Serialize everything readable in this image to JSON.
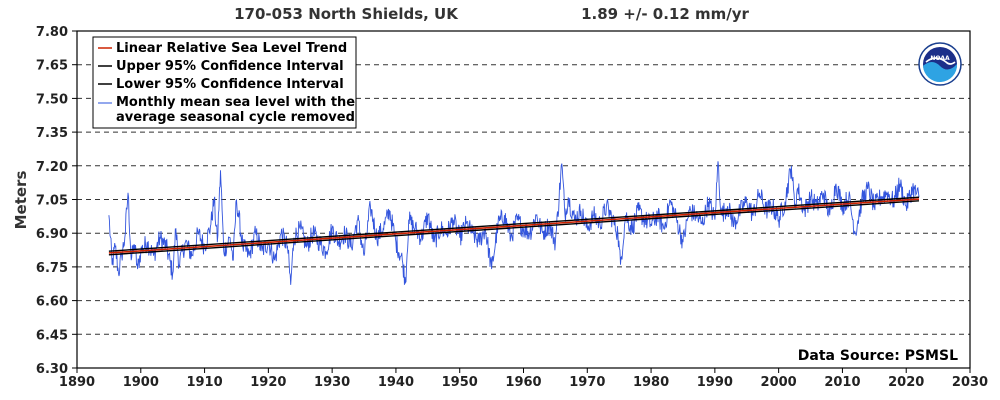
{
  "header": {
    "station": "170-053 North Shields, UK",
    "trend": "1.89 +/-  0.12 mm/yr"
  },
  "source_label": "Data Source: PSMSL",
  "logo": {
    "icon": "noaa-logo-icon",
    "text": "NOAA"
  },
  "colors": {
    "trend": "#cc2200",
    "ci": "#000000",
    "series": "#3355dd",
    "grid": "#333333"
  },
  "chart_data": {
    "type": "line",
    "title": "170-053 North Shields, UK",
    "subtitle": "1.89 +/-  0.12 mm/yr",
    "ylabel": "Meters",
    "xlabel": "",
    "xlim": [
      1890,
      2030
    ],
    "ylim": [
      6.3,
      7.8
    ],
    "x_ticks": [
      "1890",
      "1900",
      "1910",
      "1920",
      "1930",
      "1940",
      "1950",
      "1960",
      "1970",
      "1980",
      "1990",
      "2000",
      "2010",
      "2020",
      "2030"
    ],
    "y_ticks": [
      "7.80",
      "7.65",
      "7.50",
      "7.35",
      "7.20",
      "7.05",
      "6.90",
      "6.75",
      "6.60",
      "6.45",
      "6.30"
    ],
    "grid": "horizontal-dashed",
    "legend_position": "top-left",
    "legend": [
      "Linear Relative Sea Level Trend",
      "Upper 95% Confidence Interval",
      "Lower 95% Confidence Interval",
      "Monthly mean sea level with the",
      "average seasonal cycle removed"
    ],
    "trend_line": {
      "x": [
        1895,
        2022
      ],
      "y": [
        6.812,
        7.052
      ]
    },
    "upper_ci": {
      "x": [
        1895,
        2022
      ],
      "y": [
        6.82,
        7.06
      ]
    },
    "lower_ci": {
      "x": [
        1895,
        2022
      ],
      "y": [
        6.804,
        7.044
      ]
    },
    "monthly_series": {
      "name": "Monthly mean sea level with the average seasonal cycle removed",
      "x": [
        1895.0,
        1895.5,
        1896.0,
        1896.5,
        1897.0,
        1897.5,
        1898.0,
        1898.5,
        1899.0,
        1899.5,
        1900.0,
        1901.0,
        1902.0,
        1903.0,
        1904.0,
        1905.0,
        1905.5,
        1906.0,
        1907.0,
        1908.0,
        1909.0,
        1910.0,
        1911.0,
        1911.5,
        1912.0,
        1912.5,
        1913.0,
        1914.0,
        1914.5,
        1915.0,
        1916.0,
        1917.0,
        1918.0,
        1919.0,
        1920.0,
        1921.0,
        1922.0,
        1923.0,
        1923.5,
        1924.0,
        1925.0,
        1926.0,
        1927.0,
        1928.0,
        1929.0,
        1930.0,
        1931.0,
        1932.0,
        1933.0,
        1934.0,
        1935.0,
        1936.0,
        1937.0,
        1938.0,
        1939.0,
        1940.0,
        1941.0,
        1941.5,
        1942.0,
        1943.0,
        1944.0,
        1945.0,
        1946.0,
        1947.0,
        1948.0,
        1949.0,
        1950.0,
        1951.0,
        1952.0,
        1953.0,
        1954.0,
        1955.0,
        1956.0,
        1957.0,
        1958.0,
        1959.0,
        1960.0,
        1961.0,
        1962.0,
        1963.0,
        1964.0,
        1965.0,
        1966.0,
        1966.5,
        1967.0,
        1968.0,
        1969.0,
        1970.0,
        1971.0,
        1972.0,
        1973.0,
        1974.0,
        1974.8,
        1975.2,
        1976.0,
        1977.0,
        1978.0,
        1979.0,
        1980.0,
        1981.0,
        1982.0,
        1983.0,
        1984.0,
        1985.0,
        1986.0,
        1987.0,
        1988.0,
        1989.0,
        1990.0,
        1990.5,
        1991.0,
        1992.0,
        1993.0,
        1994.0,
        1995.0,
        1996.0,
        1997.0,
        1998.0,
        1999.0,
        2000.0,
        2001.0,
        2002.0,
        2002.5,
        2003.0,
        2004.0,
        2005.0,
        2006.0,
        2007.0,
        2008.0,
        2009.0,
        2010.0,
        2011.0,
        2012.0,
        2013.0,
        2014.0,
        2015.0,
        2016.0,
        2017.0,
        2018.0,
        2019.0,
        2020.0,
        2021.0,
        2022.0
      ],
      "y": [
        6.98,
        6.76,
        6.84,
        6.72,
        6.8,
        6.88,
        7.08,
        6.78,
        6.85,
        6.74,
        6.82,
        6.86,
        6.8,
        6.88,
        6.84,
        6.72,
        6.92,
        6.76,
        6.86,
        6.8,
        6.9,
        6.84,
        6.94,
        7.05,
        6.86,
        7.18,
        6.82,
        6.88,
        6.78,
        7.05,
        6.84,
        6.8,
        6.9,
        6.82,
        6.86,
        6.78,
        6.9,
        6.84,
        6.67,
        6.88,
        6.92,
        6.84,
        6.9,
        6.86,
        6.82,
        6.92,
        6.86,
        6.9,
        6.84,
        6.96,
        6.8,
        7.02,
        6.88,
        6.92,
        7.0,
        6.86,
        6.78,
        6.68,
        6.96,
        6.92,
        6.88,
        6.98,
        6.86,
        6.92,
        6.9,
        6.96,
        6.88,
        6.94,
        6.9,
        6.86,
        6.92,
        6.74,
        6.94,
        6.98,
        6.88,
        6.96,
        6.92,
        6.9,
        6.98,
        6.9,
        6.94,
        6.86,
        7.21,
        6.98,
        7.06,
        6.96,
        7.0,
        6.92,
        6.98,
        6.94,
        7.02,
        6.96,
        6.9,
        6.76,
        6.98,
        6.92,
        7.0,
        6.96,
        6.94,
        6.98,
        6.92,
        7.04,
        6.96,
        6.86,
        7.0,
        6.98,
        6.94,
        7.04,
        6.96,
        7.22,
        6.98,
        7.02,
        6.94,
        7.0,
        7.04,
        6.98,
        7.08,
        7.0,
        7.02,
        6.96,
        7.04,
        7.2,
        7.02,
        7.1,
        7.0,
        7.06,
        7.02,
        7.08,
        6.98,
        7.12,
        7.02,
        7.06,
        6.9,
        7.04,
        7.1,
        7.02,
        7.06,
        7.08,
        7.04,
        7.12,
        7.02,
        7.1,
        7.06
      ]
    }
  }
}
